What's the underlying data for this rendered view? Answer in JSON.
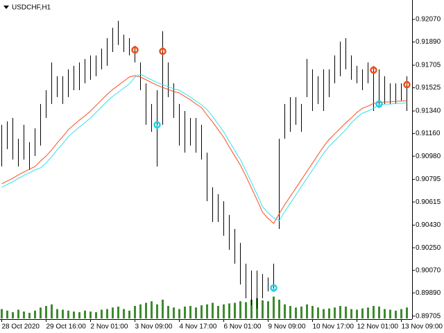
{
  "chart_data": {
    "type": "ohlc",
    "title": "USDCHF,H1",
    "color": "#000000",
    "categories": [
      "28 Oct 2020",
      null,
      null,
      null,
      null,
      null,
      null,
      null,
      "29 Oct 16:00",
      null,
      null,
      null,
      null,
      null,
      null,
      null,
      "2 Nov 01:00",
      null,
      null,
      null,
      null,
      null,
      null,
      null,
      "3 Nov 09:00",
      null,
      null,
      null,
      null,
      null,
      null,
      null,
      "4 Nov 17:00",
      null,
      null,
      null,
      null,
      null,
      null,
      null,
      "6 Nov 01:00",
      null,
      null,
      null,
      null,
      null,
      null,
      null,
      "9 Nov 09:00",
      null,
      null,
      null,
      null,
      null,
      null,
      null,
      "10 Nov 17:00",
      null,
      null,
      null,
      null,
      null,
      null,
      null,
      "12 Nov 01:00",
      null,
      null,
      null,
      null,
      null,
      null,
      null,
      "13 Nov 09:00",
      null
    ],
    "high": [
      0.9123,
      0.91257,
      0.91285,
      0.91119,
      0.9123,
      0.91091,
      0.91202,
      0.91396,
      0.91506,
      0.91727,
      0.91617,
      0.91617,
      0.91672,
      0.917,
      0.91727,
      0.91755,
      0.91783,
      0.91783,
      0.91838,
      0.91921,
      0.92004,
      0.92059,
      0.91949,
      0.91921,
      0.91838,
      0.91727,
      0.91561,
      0.91396,
      0.91506,
      0.91976,
      0.91727,
      0.91561,
      0.91396,
      0.9134,
      0.91285,
      0.91285,
      0.9123,
      0.91008,
      0.90732,
      0.90677,
      0.90621,
      0.90511,
      0.904,
      0.90289,
      0.90123,
      0.90068,
      0.90068,
      0.9004,
      0.90013,
      0.90123,
      0.91119,
      0.91396,
      0.91451,
      0.91451,
      0.91396,
      0.91755,
      0.91672,
      0.91617,
      0.91672,
      0.91672,
      0.91783,
      0.91893,
      0.91921,
      0.91783,
      0.917,
      0.91672,
      0.91727,
      0.91672,
      0.91672,
      0.91617,
      0.91561,
      0.91561,
      0.91561,
      0.91617
    ],
    "low": [
      0.90898,
      0.91036,
      0.90953,
      0.90898,
      0.90953,
      0.9087,
      0.90981,
      0.91064,
      0.91285,
      0.91396,
      0.91451,
      0.91396,
      0.91451,
      0.91506,
      0.91506,
      0.91561,
      0.91589,
      0.91617,
      0.91672,
      0.917,
      0.9181,
      0.91866,
      0.9181,
      0.91783,
      0.91727,
      0.91506,
      0.9123,
      0.91174,
      0.90898,
      0.9123,
      0.91451,
      0.91285,
      0.91064,
      0.91008,
      0.91064,
      0.91008,
      0.90953,
      0.90621,
      0.90455,
      0.90455,
      0.90345,
      0.90234,
      0.90123,
      0.89957,
      0.89847,
      0.89791,
      0.89764,
      0.89847,
      0.89902,
      0.89902,
      0.904,
      0.91119,
      0.91174,
      0.9123,
      0.91174,
      0.91451,
      0.9134,
      0.91396,
      0.9134,
      0.91451,
      0.91561,
      0.91617,
      0.91672,
      0.91589,
      0.91561,
      0.91506,
      0.91561,
      0.9134,
      0.91396,
      0.91396,
      0.91396,
      0.91396,
      0.91423,
      0.9134
    ],
    "lines": [
      {
        "color": "#ff4a1a",
        "values": [
          0.9076,
          0.90782,
          0.90804,
          0.90831,
          0.90854,
          0.90876,
          0.90898,
          0.90942,
          0.90981,
          0.91031,
          0.91086,
          0.91136,
          0.91191,
          0.9123,
          0.91268,
          0.91302,
          0.9134,
          0.91384,
          0.91429,
          0.91473,
          0.91512,
          0.91545,
          0.91578,
          0.91611,
          0.91622,
          0.91611,
          0.91589,
          0.91567,
          0.91545,
          0.91528,
          0.91512,
          0.91495,
          0.91484,
          0.91456,
          0.91429,
          0.91396,
          0.91368,
          0.91307,
          0.91252,
          0.91191,
          0.9113,
          0.91053,
          0.90981,
          0.90909,
          0.9082,
          0.90726,
          0.90632,
          0.90533,
          0.90483,
          0.90444,
          0.90522,
          0.90594,
          0.9066,
          0.90726,
          0.90793,
          0.90859,
          0.90925,
          0.90992,
          0.91058,
          0.91114,
          0.91158,
          0.91202,
          0.91246,
          0.91285,
          0.91329,
          0.91362,
          0.91379,
          0.91401,
          0.91407,
          0.91412,
          0.91412,
          0.91418,
          0.91418,
          0.91423
        ]
      },
      {
        "color": "#33e0f0",
        "values": [
          0.90732,
          0.90754,
          0.90776,
          0.90803,
          0.90826,
          0.90848,
          0.9087,
          0.90887,
          0.90926,
          0.90976,
          0.91031,
          0.91081,
          0.91136,
          0.91175,
          0.91213,
          0.91247,
          0.91285,
          0.91329,
          0.91374,
          0.91418,
          0.91457,
          0.9149,
          0.91523,
          0.91556,
          0.91611,
          0.91633,
          0.91611,
          0.91589,
          0.91567,
          0.9155,
          0.91534,
          0.91517,
          0.91506,
          0.91478,
          0.91451,
          0.91418,
          0.9139,
          0.91351,
          0.91296,
          0.91235,
          0.91174,
          0.91097,
          0.91025,
          0.90953,
          0.90864,
          0.9077,
          0.90676,
          0.90577,
          0.90527,
          0.90488,
          0.90467,
          0.90539,
          0.90605,
          0.90671,
          0.90738,
          0.90804,
          0.9087,
          0.90937,
          0.91003,
          0.91059,
          0.91103,
          0.91147,
          0.91191,
          0.91246,
          0.9129,
          0.91323,
          0.9134,
          0.91362,
          0.9139,
          0.91395,
          0.91395,
          0.91401,
          0.91401,
          0.91406
        ]
      }
    ],
    "volume": {
      "color": "#3c8a2e",
      "vlim": [
        0,
        100
      ],
      "values": [
        30,
        25,
        20,
        28,
        22,
        18,
        25,
        35,
        40,
        45,
        30,
        28,
        25,
        22,
        20,
        25,
        22,
        20,
        28,
        30,
        35,
        38,
        30,
        25,
        40,
        45,
        50,
        55,
        45,
        60,
        40,
        35,
        30,
        38,
        40,
        35,
        42,
        45,
        50,
        40,
        45,
        48,
        50,
        55,
        52,
        60,
        65,
        58,
        55,
        70,
        60,
        45,
        40,
        35,
        38,
        45,
        40,
        35,
        30,
        32,
        35,
        40,
        38,
        30,
        28,
        32,
        35,
        40,
        38,
        30,
        28,
        25,
        30,
        35
      ]
    },
    "sell_signals": {
      "color": "#e8501a",
      "x": [
        24,
        29,
        67,
        73
      ],
      "values": [
        0.91827,
        0.91816,
        0.91666,
        0.9155
      ]
    },
    "buy_signals": {
      "color": "#20d0e8",
      "x": [
        28,
        49,
        68
      ],
      "values": [
        0.9123,
        0.8993,
        0.91396
      ]
    },
    "ylim": [
      0.89681,
      0.92225
    ],
    "yticks": [
      {
        "value": 0.9207,
        "label": "0.92070"
      },
      {
        "value": 0.9189,
        "label": "0.91890"
      },
      {
        "value": 0.91705,
        "label": "0.91705"
      },
      {
        "value": 0.91525,
        "label": "0.91525"
      },
      {
        "value": 0.9134,
        "label": "0.91340"
      },
      {
        "value": 0.9116,
        "label": "0.91160"
      },
      {
        "value": 0.9098,
        "label": "0.90980"
      },
      {
        "value": 0.90795,
        "label": "0.90795"
      },
      {
        "value": 0.90615,
        "label": "0.90615"
      },
      {
        "value": 0.9043,
        "label": "0.90430"
      },
      {
        "value": 0.9025,
        "label": "0.90250"
      },
      {
        "value": 0.9007,
        "label": "0.90070"
      },
      {
        "value": 0.8989,
        "label": "0.89890"
      },
      {
        "value": 0.89705,
        "label": "0.89705"
      }
    ]
  }
}
